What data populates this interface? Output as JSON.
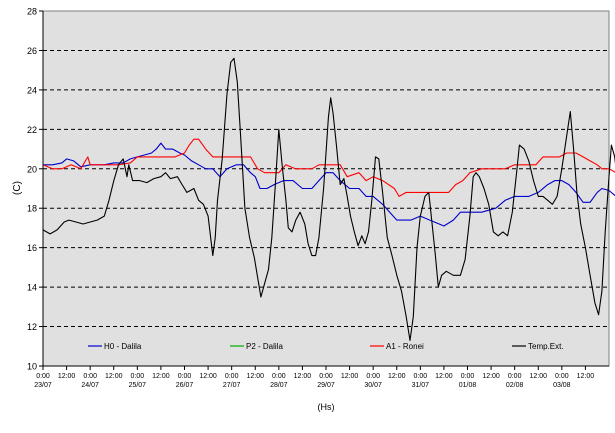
{
  "chart_data": {
    "type": "line",
    "ylabel": "(C)",
    "xlabel": "(Hs)",
    "ylim": [
      10,
      28
    ],
    "yticks": [
      10,
      12,
      14,
      16,
      18,
      20,
      22,
      24,
      26,
      28
    ],
    "xlim": [
      0,
      12
    ],
    "grid": "horizontal dashed",
    "plot_background": "#e0e0e0",
    "legend_position": "inside-bottom",
    "x_tick_labels": [
      {
        "x": 0.0,
        "time": "0:00",
        "date": "23/07"
      },
      {
        "x": 0.5,
        "time": "12:00",
        "date": ""
      },
      {
        "x": 1.0,
        "time": "0:00",
        "date": "24/07"
      },
      {
        "x": 1.5,
        "time": "12:00",
        "date": ""
      },
      {
        "x": 2.0,
        "time": "0:00",
        "date": "25/07"
      },
      {
        "x": 2.5,
        "time": "12:00",
        "date": ""
      },
      {
        "x": 3.0,
        "time": "0:00",
        "date": "26/07"
      },
      {
        "x": 3.5,
        "time": "12:00",
        "date": ""
      },
      {
        "x": 4.0,
        "time": "0:00",
        "date": "27/07"
      },
      {
        "x": 4.5,
        "time": "12:00",
        "date": ""
      },
      {
        "x": 5.0,
        "time": "0:00",
        "date": "28/07"
      },
      {
        "x": 5.5,
        "time": "12:00",
        "date": ""
      },
      {
        "x": 6.0,
        "time": "0:00",
        "date": "29/07"
      },
      {
        "x": 6.5,
        "time": "12:00",
        "date": ""
      },
      {
        "x": 7.0,
        "time": "0:00",
        "date": "30/07"
      },
      {
        "x": 7.5,
        "time": "12:00",
        "date": ""
      },
      {
        "x": 8.0,
        "time": "0:00",
        "date": "31/07"
      },
      {
        "x": 8.5,
        "time": "12:00",
        "date": ""
      },
      {
        "x": 9.0,
        "time": "0:00",
        "date": "01/08"
      },
      {
        "x": 9.5,
        "time": "12:00",
        "date": ""
      },
      {
        "x": 10.0,
        "time": "0:00",
        "date": "02/08"
      },
      {
        "x": 10.5,
        "time": "12:00",
        "date": ""
      },
      {
        "x": 11.0,
        "time": "0:00",
        "date": "03/08"
      },
      {
        "x": 11.5,
        "time": "12:00",
        "date": ""
      }
    ],
    "series": [
      {
        "name": "H0 - Dalila",
        "color": "#0000cc",
        "points": [
          [
            0,
            20.2
          ],
          [
            0.2,
            20.2
          ],
          [
            0.4,
            20.3
          ],
          [
            0.5,
            20.5
          ],
          [
            0.65,
            20.4
          ],
          [
            0.8,
            20.1
          ],
          [
            1.0,
            20.2
          ],
          [
            1.3,
            20.2
          ],
          [
            1.5,
            20.3
          ],
          [
            1.7,
            20.3
          ],
          [
            1.85,
            20.5
          ],
          [
            2.0,
            20.6
          ],
          [
            2.15,
            20.7
          ],
          [
            2.3,
            20.8
          ],
          [
            2.4,
            21.0
          ],
          [
            2.5,
            21.3
          ],
          [
            2.6,
            21.0
          ],
          [
            2.75,
            21.0
          ],
          [
            2.9,
            20.8
          ],
          [
            3.0,
            20.7
          ],
          [
            3.15,
            20.4
          ],
          [
            3.3,
            20.2
          ],
          [
            3.45,
            20.0
          ],
          [
            3.6,
            20.0
          ],
          [
            3.75,
            19.6
          ],
          [
            3.9,
            20.0
          ],
          [
            4.1,
            20.2
          ],
          [
            4.25,
            20.2
          ],
          [
            4.4,
            19.8
          ],
          [
            4.5,
            19.6
          ],
          [
            4.6,
            19.0
          ],
          [
            4.75,
            19.0
          ],
          [
            4.9,
            19.2
          ],
          [
            5.1,
            19.4
          ],
          [
            5.3,
            19.4
          ],
          [
            5.5,
            19.0
          ],
          [
            5.7,
            19.0
          ],
          [
            5.85,
            19.4
          ],
          [
            6.0,
            19.8
          ],
          [
            6.15,
            19.8
          ],
          [
            6.3,
            19.4
          ],
          [
            6.5,
            19.0
          ],
          [
            6.7,
            19.0
          ],
          [
            6.85,
            18.6
          ],
          [
            7.0,
            18.6
          ],
          [
            7.2,
            18.2
          ],
          [
            7.35,
            17.8
          ],
          [
            7.5,
            17.4
          ],
          [
            7.65,
            17.4
          ],
          [
            7.8,
            17.4
          ],
          [
            8.0,
            17.6
          ],
          [
            8.2,
            17.4
          ],
          [
            8.4,
            17.2
          ],
          [
            8.5,
            17.1
          ],
          [
            8.7,
            17.4
          ],
          [
            8.85,
            17.8
          ],
          [
            9.0,
            17.8
          ],
          [
            9.3,
            17.8
          ],
          [
            9.6,
            18.0
          ],
          [
            9.8,
            18.4
          ],
          [
            10.0,
            18.6
          ],
          [
            10.3,
            18.6
          ],
          [
            10.5,
            18.8
          ],
          [
            10.7,
            19.2
          ],
          [
            10.85,
            19.4
          ],
          [
            11.0,
            19.4
          ],
          [
            11.15,
            19.2
          ],
          [
            11.3,
            18.8
          ],
          [
            11.45,
            18.3
          ],
          [
            11.6,
            18.3
          ],
          [
            11.75,
            18.8
          ],
          [
            11.85,
            19.0
          ],
          [
            12.0,
            18.9
          ],
          [
            12.15,
            18.6
          ],
          [
            12.28,
            18.5
          ]
        ]
      },
      {
        "name": "P2 - Dalila",
        "color": "#00aa00",
        "points": []
      },
      {
        "name": "A1 - Ronei",
        "color": "#ff0000",
        "points": [
          [
            0,
            20.2
          ],
          [
            0.2,
            20.0
          ],
          [
            0.4,
            20.0
          ],
          [
            0.6,
            20.2
          ],
          [
            0.8,
            20.0
          ],
          [
            0.95,
            20.6
          ],
          [
            1.0,
            20.2
          ],
          [
            1.3,
            20.2
          ],
          [
            1.6,
            20.2
          ],
          [
            1.85,
            20.3
          ],
          [
            2.0,
            20.6
          ],
          [
            2.3,
            20.6
          ],
          [
            2.6,
            20.6
          ],
          [
            2.8,
            20.6
          ],
          [
            3.0,
            20.8
          ],
          [
            3.1,
            21.2
          ],
          [
            3.2,
            21.5
          ],
          [
            3.3,
            21.5
          ],
          [
            3.45,
            21.0
          ],
          [
            3.6,
            20.6
          ],
          [
            3.8,
            20.6
          ],
          [
            4.0,
            20.6
          ],
          [
            4.2,
            20.6
          ],
          [
            4.4,
            20.6
          ],
          [
            4.55,
            20.0
          ],
          [
            4.7,
            19.8
          ],
          [
            4.85,
            19.8
          ],
          [
            5.0,
            19.8
          ],
          [
            5.15,
            20.2
          ],
          [
            5.35,
            20.0
          ],
          [
            5.5,
            20.0
          ],
          [
            5.7,
            20.0
          ],
          [
            5.85,
            20.2
          ],
          [
            6.0,
            20.2
          ],
          [
            6.3,
            20.2
          ],
          [
            6.45,
            19.6
          ],
          [
            6.7,
            19.8
          ],
          [
            6.85,
            19.4
          ],
          [
            7.0,
            19.6
          ],
          [
            7.2,
            19.4
          ],
          [
            7.45,
            19.0
          ],
          [
            7.55,
            18.6
          ],
          [
            7.7,
            18.8
          ],
          [
            8.0,
            18.8
          ],
          [
            8.3,
            18.8
          ],
          [
            8.6,
            18.8
          ],
          [
            8.75,
            19.2
          ],
          [
            8.9,
            19.4
          ],
          [
            9.05,
            19.8
          ],
          [
            9.3,
            20.0
          ],
          [
            9.6,
            20.0
          ],
          [
            9.8,
            20.0
          ],
          [
            10.0,
            20.2
          ],
          [
            10.3,
            20.2
          ],
          [
            10.45,
            20.2
          ],
          [
            10.6,
            20.6
          ],
          [
            10.8,
            20.6
          ],
          [
            10.95,
            20.6
          ],
          [
            11.1,
            20.8
          ],
          [
            11.3,
            20.8
          ],
          [
            11.45,
            20.6
          ],
          [
            11.6,
            20.4
          ],
          [
            11.75,
            20.2
          ],
          [
            11.85,
            20.0
          ],
          [
            12.0,
            20.0
          ],
          [
            12.15,
            19.8
          ],
          [
            12.28,
            20.0
          ]
        ]
      },
      {
        "name": "Temp.Ext.",
        "color": "#000000",
        "points": [
          [
            0,
            16.9
          ],
          [
            0.15,
            16.7
          ],
          [
            0.3,
            16.9
          ],
          [
            0.45,
            17.3
          ],
          [
            0.55,
            17.4
          ],
          [
            0.7,
            17.3
          ],
          [
            0.85,
            17.2
          ],
          [
            1.0,
            17.3
          ],
          [
            1.15,
            17.4
          ],
          [
            1.3,
            17.6
          ],
          [
            1.4,
            18.4
          ],
          [
            1.5,
            19.4
          ],
          [
            1.6,
            20.2
          ],
          [
            1.7,
            20.5
          ],
          [
            1.78,
            19.6
          ],
          [
            1.82,
            20.2
          ],
          [
            1.9,
            19.4
          ],
          [
            2.05,
            19.4
          ],
          [
            2.2,
            19.3
          ],
          [
            2.35,
            19.5
          ],
          [
            2.5,
            19.6
          ],
          [
            2.6,
            19.8
          ],
          [
            2.7,
            19.5
          ],
          [
            2.85,
            19.6
          ],
          [
            2.95,
            19.2
          ],
          [
            3.05,
            18.8
          ],
          [
            3.2,
            19.0
          ],
          [
            3.3,
            18.4
          ],
          [
            3.4,
            18.2
          ],
          [
            3.5,
            17.6
          ],
          [
            3.6,
            15.6
          ],
          [
            3.65,
            16.5
          ],
          [
            3.7,
            18.4
          ],
          [
            3.8,
            20.5
          ],
          [
            3.9,
            23.8
          ],
          [
            3.98,
            25.4
          ],
          [
            4.05,
            25.6
          ],
          [
            4.12,
            24.4
          ],
          [
            4.18,
            22.0
          ],
          [
            4.28,
            18.0
          ],
          [
            4.38,
            16.5
          ],
          [
            4.48,
            15.5
          ],
          [
            4.55,
            14.5
          ],
          [
            4.62,
            13.5
          ],
          [
            4.7,
            14.2
          ],
          [
            4.78,
            14.9
          ],
          [
            4.85,
            16.5
          ],
          [
            4.92,
            19.0
          ],
          [
            5.0,
            22.0
          ],
          [
            5.07,
            20.2
          ],
          [
            5.15,
            18.4
          ],
          [
            5.2,
            17.0
          ],
          [
            5.28,
            16.8
          ],
          [
            5.36,
            17.4
          ],
          [
            5.45,
            17.8
          ],
          [
            5.55,
            17.2
          ],
          [
            5.62,
            16.2
          ],
          [
            5.7,
            15.6
          ],
          [
            5.78,
            15.6
          ],
          [
            5.85,
            16.5
          ],
          [
            5.95,
            19.0
          ],
          [
            6.05,
            22.6
          ],
          [
            6.1,
            23.6
          ],
          [
            6.15,
            22.8
          ],
          [
            6.22,
            21.2
          ],
          [
            6.3,
            19.2
          ],
          [
            6.38,
            19.5
          ],
          [
            6.45,
            18.6
          ],
          [
            6.52,
            17.6
          ],
          [
            6.6,
            16.8
          ],
          [
            6.68,
            16.1
          ],
          [
            6.76,
            16.6
          ],
          [
            6.83,
            16.2
          ],
          [
            6.9,
            16.8
          ],
          [
            6.97,
            18.4
          ],
          [
            7.05,
            20.6
          ],
          [
            7.12,
            20.5
          ],
          [
            7.2,
            18.8
          ],
          [
            7.3,
            16.5
          ],
          [
            7.4,
            15.6
          ],
          [
            7.5,
            14.6
          ],
          [
            7.6,
            13.8
          ],
          [
            7.7,
            12.5
          ],
          [
            7.78,
            11.3
          ],
          [
            7.85,
            12.5
          ],
          [
            7.93,
            16.0
          ],
          [
            8.0,
            17.6
          ],
          [
            8.1,
            18.6
          ],
          [
            8.18,
            18.8
          ],
          [
            8.25,
            17.2
          ],
          [
            8.32,
            15.6
          ],
          [
            8.38,
            14.0
          ],
          [
            8.45,
            14.6
          ],
          [
            8.55,
            14.8
          ],
          [
            8.7,
            14.6
          ],
          [
            8.85,
            14.6
          ],
          [
            8.95,
            15.4
          ],
          [
            9.05,
            17.6
          ],
          [
            9.12,
            19.6
          ],
          [
            9.18,
            19.8
          ],
          [
            9.25,
            19.6
          ],
          [
            9.35,
            19.0
          ],
          [
            9.45,
            18.2
          ],
          [
            9.55,
            16.8
          ],
          [
            9.65,
            16.6
          ],
          [
            9.75,
            16.8
          ],
          [
            9.85,
            16.6
          ],
          [
            9.95,
            17.8
          ],
          [
            10.05,
            20.0
          ],
          [
            10.1,
            21.2
          ],
          [
            10.2,
            21.0
          ],
          [
            10.3,
            20.4
          ],
          [
            10.4,
            19.4
          ],
          [
            10.5,
            18.6
          ],
          [
            10.6,
            18.6
          ],
          [
            10.7,
            18.4
          ],
          [
            10.8,
            18.2
          ],
          [
            10.9,
            18.6
          ],
          [
            11.0,
            20.0
          ],
          [
            11.1,
            21.6
          ],
          [
            11.18,
            22.9
          ],
          [
            11.25,
            21.0
          ],
          [
            11.32,
            18.8
          ],
          [
            11.4,
            17.2
          ],
          [
            11.5,
            16.0
          ],
          [
            11.6,
            14.6
          ],
          [
            11.7,
            13.2
          ],
          [
            11.78,
            12.6
          ],
          [
            11.85,
            13.8
          ],
          [
            11.92,
            16.8
          ],
          [
            12.0,
            19.6
          ],
          [
            12.05,
            21.2
          ],
          [
            12.12,
            20.6
          ],
          [
            12.2,
            19.0
          ],
          [
            12.28,
            17.2
          ],
          [
            12.36,
            16.9
          ],
          [
            12.42,
            16.5
          ]
        ]
      }
    ]
  }
}
